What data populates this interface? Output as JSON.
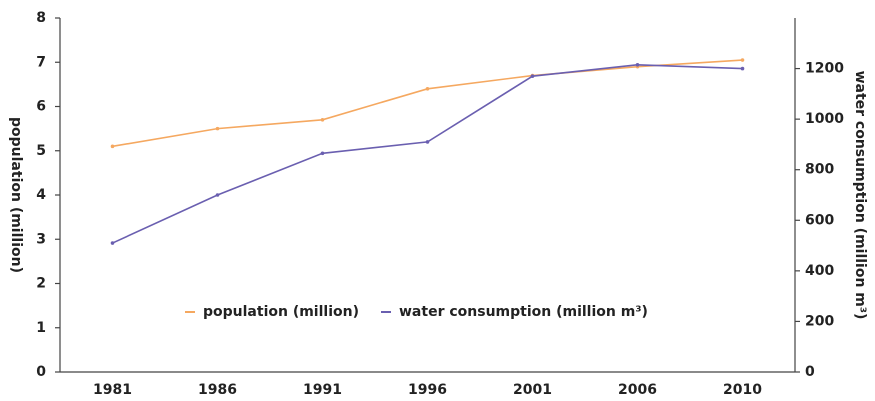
{
  "chart_data": {
    "type": "line",
    "categories": [
      "1981",
      "1986",
      "1991",
      "1996",
      "2001",
      "2006",
      "2010"
    ],
    "series": [
      {
        "name": "population (million)",
        "color": "#f5a860",
        "values": [
          5.1,
          5.5,
          5.7,
          6.4,
          6.7,
          6.9,
          7.05
        ]
      },
      {
        "name": "water consumption (million m³)",
        "color": "#6a5fb0",
        "axis": "y2",
        "values": [
          510,
          700,
          865,
          910,
          1170,
          1215,
          1200
        ]
      }
    ],
    "ylabel": "population (million)",
    "y2label": "water consumption (million m³)",
    "ylim": [
      0,
      8
    ],
    "yticks": [
      0,
      1,
      2,
      3,
      4,
      5,
      6,
      7,
      8
    ],
    "y2lim": [
      0,
      1400
    ],
    "y2ticks": [
      0,
      200,
      400,
      600,
      800,
      1000,
      1200
    ],
    "grid": false,
    "legend": "bottom"
  }
}
